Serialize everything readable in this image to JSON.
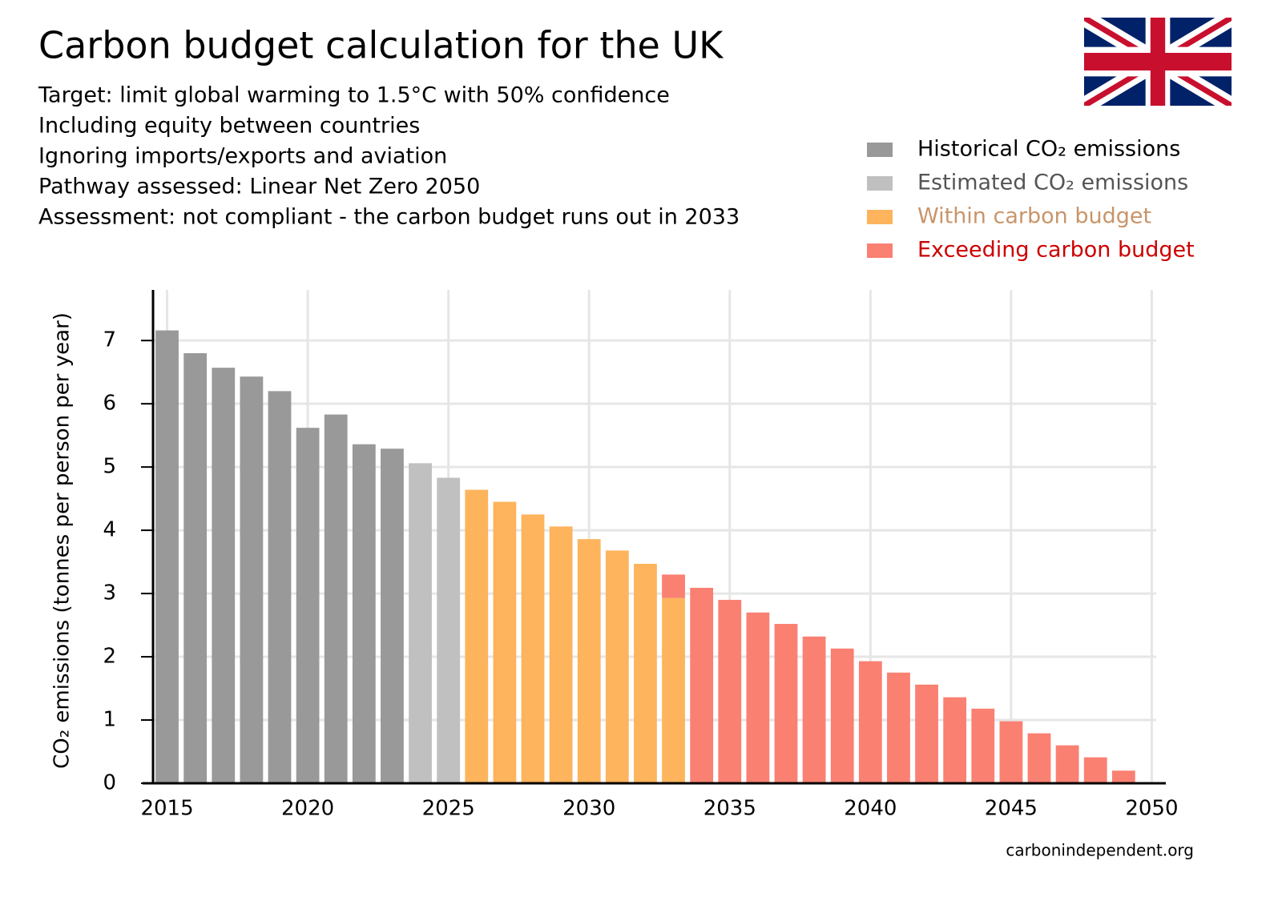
{
  "chart_data": {
    "type": "stacked_bar",
    "title": "Carbon budget calculation for the UK",
    "subtitle_lines": [
      "Target: limit global warming to 1.5°C with 50% confidence",
      "Including equity between countries",
      "Ignoring imports/exports and aviation",
      "Pathway assessed: Linear Net Zero 2050",
      "Assessment: not compliant - the carbon budget runs out in 2033"
    ],
    "y_label": "CO₂ emissions (tonnes per person per year)",
    "source": "carbonindependent.org",
    "x": [
      2015,
      2016,
      2017,
      2018,
      2019,
      2020,
      2021,
      2022,
      2023,
      2024,
      2025,
      2026,
      2027,
      2028,
      2029,
      2030,
      2031,
      2032,
      2033,
      2034,
      2035,
      2036,
      2037,
      2038,
      2039,
      2040,
      2041,
      2042,
      2043,
      2044,
      2045,
      2046,
      2047,
      2048,
      2049,
      2050
    ],
    "series": [
      {
        "name": "Historical CO₂ emissions",
        "color": "#999999",
        "text_color": "#000000",
        "values": [
          7.16,
          6.8,
          6.57,
          6.43,
          6.2,
          5.62,
          5.83,
          5.36,
          5.29,
          null,
          null,
          null,
          null,
          null,
          null,
          null,
          null,
          null,
          null,
          null,
          null,
          null,
          null,
          null,
          null,
          null,
          null,
          null,
          null,
          null,
          null,
          null,
          null,
          null,
          null,
          null
        ]
      },
      {
        "name": "Estimated CO₂ emissions",
        "color": "#c0c0c0",
        "text_color": "#555555",
        "values": [
          null,
          null,
          null,
          null,
          null,
          null,
          null,
          null,
          null,
          5.06,
          4.83,
          null,
          null,
          null,
          null,
          null,
          null,
          null,
          null,
          null,
          null,
          null,
          null,
          null,
          null,
          null,
          null,
          null,
          null,
          null,
          null,
          null,
          null,
          null,
          null,
          null
        ]
      },
      {
        "name": "Within carbon budget",
        "color": "#fdb45c",
        "text_color": "#c8956a",
        "values": [
          null,
          null,
          null,
          null,
          null,
          null,
          null,
          null,
          null,
          null,
          null,
          4.64,
          4.45,
          4.25,
          4.06,
          3.86,
          3.68,
          3.47,
          2.93,
          null,
          null,
          null,
          null,
          null,
          null,
          null,
          null,
          null,
          null,
          null,
          null,
          null,
          null,
          null,
          null,
          null
        ]
      },
      {
        "name": "Exceeding carbon budget",
        "color": "#fa8072",
        "text_color": "#cc0000",
        "values": [
          null,
          null,
          null,
          null,
          null,
          null,
          null,
          null,
          null,
          null,
          null,
          null,
          null,
          null,
          null,
          null,
          null,
          null,
          0.37,
          3.09,
          2.9,
          2.7,
          2.52,
          2.32,
          2.13,
          1.93,
          1.75,
          1.56,
          1.36,
          1.18,
          0.98,
          0.79,
          0.6,
          0.41,
          0.2,
          0
        ]
      }
    ],
    "xlim": [
      2014.5,
      2050.5
    ],
    "xticks": [
      2015,
      2020,
      2025,
      2030,
      2035,
      2040,
      2045,
      2050
    ],
    "ylim": [
      0,
      7.8
    ],
    "yticks": [
      0,
      1,
      2,
      3,
      4,
      5,
      6,
      7
    ],
    "grid": true
  }
}
